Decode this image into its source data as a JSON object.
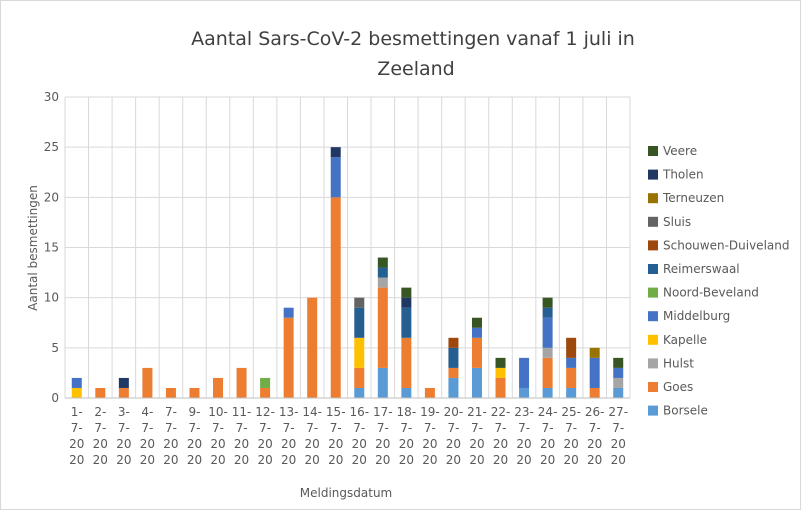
{
  "chart_data": {
    "type": "bar",
    "stacked": true,
    "title": "Aantal Sars-CoV-2 besmettingen vanaf 1 juli in Zeeland",
    "x_label": "Meldingsdatum",
    "y_label": "Aantal besmettingen",
    "categories": [
      "1-7-2020",
      "2-7-2020",
      "3-7-2020",
      "4-7-2020",
      "7-7-2020",
      "9-7-2020",
      "10-7-2020",
      "11-7-2020",
      "12-7-2020",
      "13-7-2020",
      "14-7-2020",
      "15-7-2020",
      "16-7-2020",
      "17-7-2020",
      "18-7-2020",
      "19-7-2020",
      "20-7-2020",
      "21-7-2020",
      "22-7-2020",
      "23-7-2020",
      "24-7-2020",
      "25-7-2020",
      "26-7-2020",
      "27-7-2020"
    ],
    "series": [
      {
        "name": "Borsele",
        "color": "#5b9bd5",
        "values": [
          0,
          0,
          0,
          0,
          0,
          0,
          0,
          0,
          0,
          0,
          0,
          0,
          1,
          3,
          1,
          0,
          2,
          3,
          0,
          1,
          1,
          1,
          0,
          1
        ]
      },
      {
        "name": "Goes",
        "color": "#ed7d31",
        "values": [
          0,
          1,
          1,
          3,
          1,
          1,
          2,
          3,
          1,
          8,
          10,
          20,
          2,
          8,
          5,
          1,
          1,
          3,
          2,
          0,
          3,
          2,
          1,
          0
        ]
      },
      {
        "name": "Hulst",
        "color": "#a5a5a5",
        "values": [
          0,
          0,
          0,
          0,
          0,
          0,
          0,
          0,
          0,
          0,
          0,
          0,
          0,
          1,
          0,
          0,
          0,
          0,
          0,
          0,
          1,
          0,
          0,
          1
        ]
      },
      {
        "name": "Kapelle",
        "color": "#ffc000",
        "values": [
          1,
          0,
          0,
          0,
          0,
          0,
          0,
          0,
          0,
          0,
          0,
          0,
          3,
          0,
          0,
          0,
          0,
          0,
          1,
          0,
          0,
          0,
          0,
          0
        ]
      },
      {
        "name": "Middelburg",
        "color": "#4472c4",
        "values": [
          1,
          0,
          0,
          0,
          0,
          0,
          0,
          0,
          0,
          1,
          0,
          4,
          0,
          0,
          0,
          0,
          0,
          1,
          0,
          3,
          3,
          1,
          3,
          1
        ]
      },
      {
        "name": "Noord-Beveland",
        "color": "#70ad47",
        "values": [
          0,
          0,
          0,
          0,
          0,
          0,
          0,
          0,
          1,
          0,
          0,
          0,
          0,
          0,
          0,
          0,
          0,
          0,
          0,
          0,
          0,
          0,
          0,
          0
        ]
      },
      {
        "name": "Reimerswaal",
        "color": "#255e91",
        "values": [
          0,
          0,
          0,
          0,
          0,
          0,
          0,
          0,
          0,
          0,
          0,
          0,
          3,
          1,
          3,
          0,
          2,
          0,
          0,
          0,
          1,
          0,
          0,
          0
        ]
      },
      {
        "name": "Schouwen-Duiveland",
        "color": "#9e480e",
        "values": [
          0,
          0,
          0,
          0,
          0,
          0,
          0,
          0,
          0,
          0,
          0,
          0,
          0,
          0,
          0,
          0,
          1,
          0,
          0,
          0,
          0,
          2,
          0,
          0
        ]
      },
      {
        "name": "Sluis",
        "color": "#636363",
        "values": [
          0,
          0,
          0,
          0,
          0,
          0,
          0,
          0,
          0,
          0,
          0,
          0,
          1,
          0,
          0,
          0,
          0,
          0,
          0,
          0,
          0,
          0,
          0,
          0
        ]
      },
      {
        "name": "Terneuzen",
        "color": "#997300",
        "values": [
          0,
          0,
          0,
          0,
          0,
          0,
          0,
          0,
          0,
          0,
          0,
          0,
          0,
          0,
          0,
          0,
          0,
          0,
          0,
          0,
          0,
          0,
          1,
          0
        ]
      },
      {
        "name": "Tholen",
        "color": "#203864",
        "values": [
          0,
          0,
          1,
          0,
          0,
          0,
          0,
          0,
          0,
          0,
          0,
          1,
          0,
          0,
          1,
          0,
          0,
          0,
          0,
          0,
          0,
          0,
          0,
          0
        ]
      },
      {
        "name": "Veere",
        "color": "#375623",
        "values": [
          0,
          0,
          0,
          0,
          0,
          0,
          0,
          0,
          0,
          0,
          0,
          0,
          0,
          1,
          1,
          0,
          0,
          1,
          1,
          0,
          1,
          0,
          0,
          1
        ]
      }
    ],
    "ylim": [
      0,
      30
    ],
    "yticks": [
      0,
      5,
      10,
      15,
      20,
      25,
      30
    ],
    "grid": true,
    "legend": "right"
  }
}
